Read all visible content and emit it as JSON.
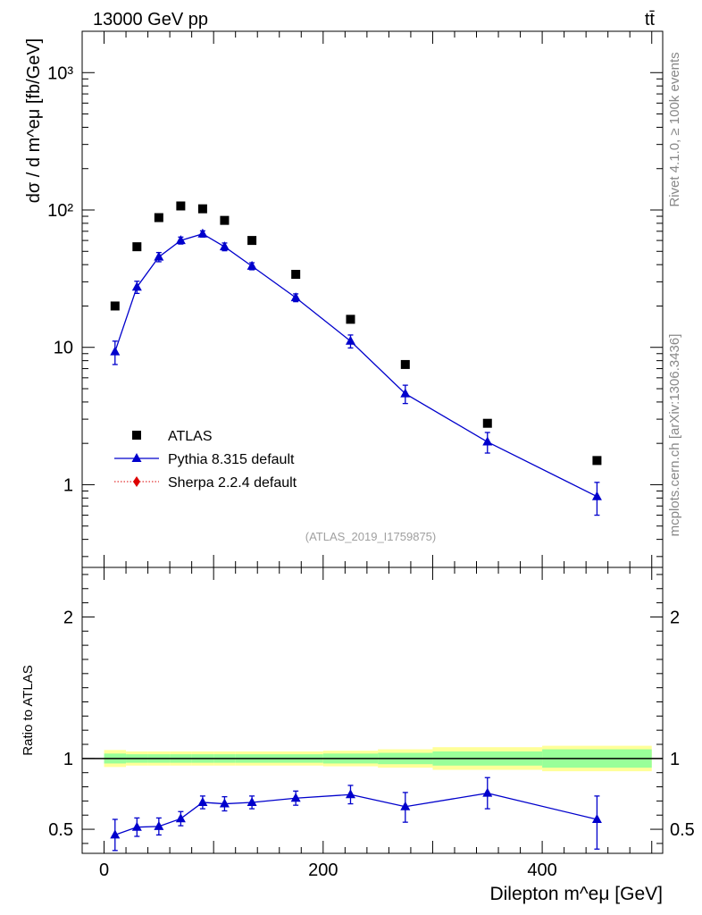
{
  "header": {
    "left_label": "13000 GeV pp",
    "right_label": "tt̄"
  },
  "side_labels": {
    "rivet": "Rivet 4.1.0, ≥ 100k events",
    "source": "mcplots.cern.ch [arXiv:1306.3436]"
  },
  "analysis_tag": "(ATLAS_2019_I1759875)",
  "colors": {
    "data": "#000000",
    "pythia": "#0000cc",
    "sherpa": "#dd0000",
    "band_inner": "#99ff99",
    "band_outer": "#ffff99"
  },
  "chart_data": [
    {
      "type": "scatter",
      "panel": "main",
      "ylabel": "dσ / d m^eμ [fb/GeV]",
      "yscale": "log",
      "xlim": [
        -20,
        510
      ],
      "ylim": [
        0.25,
        2000
      ],
      "y_tick_labels": [
        "1",
        "10",
        "10²",
        "10³"
      ],
      "legend_position": "lower-left",
      "series": [
        {
          "name": "ATLAS",
          "marker": "square",
          "x": [
            10,
            30,
            50,
            70,
            90,
            110,
            135,
            175,
            225,
            275,
            350,
            450
          ],
          "y": [
            20,
            54,
            88,
            107,
            102,
            84,
            60,
            34,
            16,
            7.5,
            2.8,
            1.5
          ]
        },
        {
          "name": "Pythia 8.315 default",
          "marker": "triangle",
          "line": "solid",
          "x": [
            10,
            30,
            50,
            70,
            90,
            110,
            135,
            175,
            225,
            275,
            350,
            450
          ],
          "y": [
            9.3,
            27.5,
            45.5,
            60,
            67,
            54,
            39,
            23,
            11.1,
            4.6,
            2.05,
            0.82
          ],
          "err_low": [
            1.8,
            2.8,
            3.5,
            3.5,
            3.5,
            3.5,
            2.3,
            1.5,
            1.2,
            0.7,
            0.35,
            0.22
          ],
          "err_high": [
            1.8,
            2.8,
            3.5,
            3.5,
            3.5,
            3.5,
            2.3,
            1.5,
            1.2,
            0.7,
            0.35,
            0.22
          ]
        },
        {
          "name": "Sherpa 2.2.4 default",
          "marker": "diamond",
          "line": "dotted",
          "x": [],
          "y": []
        }
      ]
    },
    {
      "type": "line",
      "panel": "ratio",
      "xlabel": "Dilepton m^eμ [GeV]",
      "ylabel": "Ratio to ATLAS",
      "xlim": [
        -20,
        510
      ],
      "ylim": [
        0.33,
        2.35
      ],
      "x_tick_labels": [
        "0",
        "200",
        "400"
      ],
      "y_tick_labels": [
        "0.5",
        "1",
        "2"
      ],
      "band": {
        "edges": [
          0,
          20,
          40,
          60,
          80,
          100,
          120,
          150,
          200,
          250,
          300,
          400,
          500
        ],
        "inner": [
          0.035,
          0.03,
          0.03,
          0.03,
          0.03,
          0.03,
          0.03,
          0.03,
          0.035,
          0.04,
          0.05,
          0.065
        ],
        "outer": [
          0.06,
          0.05,
          0.05,
          0.05,
          0.05,
          0.05,
          0.05,
          0.05,
          0.055,
          0.065,
          0.08,
          0.09
        ]
      },
      "series": [
        {
          "name": "Pythia 8.315 default",
          "x": [
            10,
            30,
            50,
            70,
            90,
            110,
            135,
            175,
            225,
            275,
            350,
            450
          ],
          "y": [
            0.46,
            0.515,
            0.52,
            0.575,
            0.69,
            0.68,
            0.69,
            0.72,
            0.745,
            0.66,
            0.755,
            0.57
          ],
          "err_low": [
            0.11,
            0.065,
            0.06,
            0.05,
            0.045,
            0.05,
            0.045,
            0.05,
            0.065,
            0.11,
            0.11,
            0.21
          ],
          "err_high": [
            0.11,
            0.065,
            0.06,
            0.05,
            0.045,
            0.05,
            0.045,
            0.05,
            0.065,
            0.1,
            0.11,
            0.165
          ]
        }
      ]
    }
  ]
}
